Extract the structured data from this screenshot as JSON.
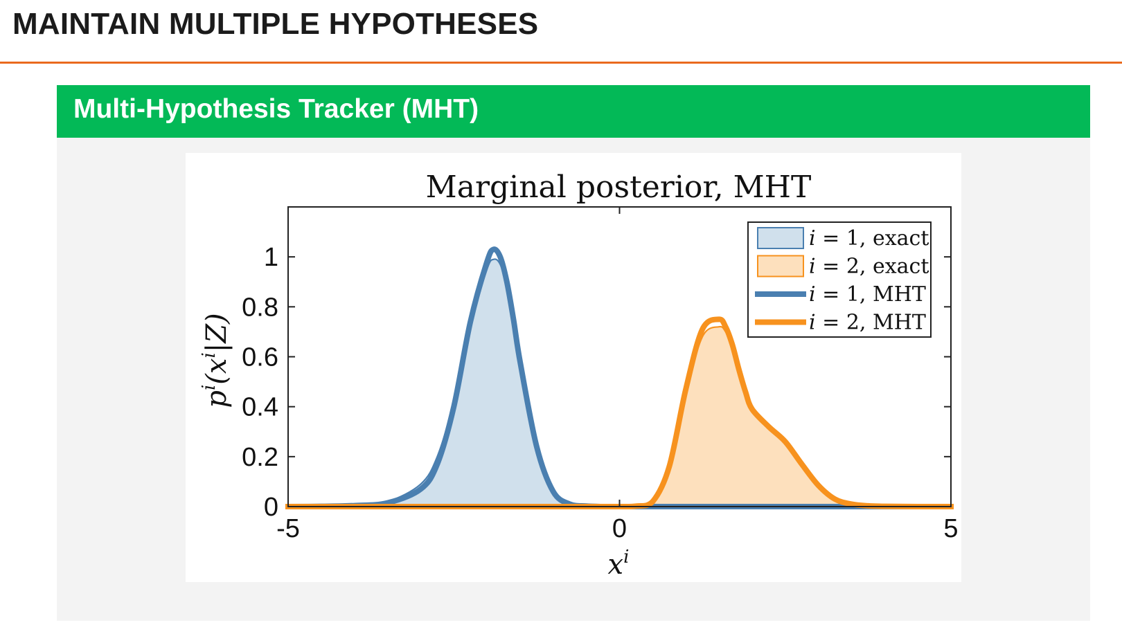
{
  "slide": {
    "title": "MAINTAIN MULTIPLE HYPOTHESES"
  },
  "block": {
    "title": "Multi-Hypothesis Tracker (MHT)"
  },
  "colors": {
    "accent_rule": "#ea6a1e",
    "block_header": "#03b957",
    "series_blue": "#4a7fb0",
    "series_orange": "#f7921e"
  },
  "chart_data": {
    "type": "area",
    "title": "Marginal posterior, MHT",
    "xlabel": "x^i",
    "ylabel": "p^i(x^i|Z)",
    "xlim": [
      -5,
      5
    ],
    "ylim": [
      0,
      1.2
    ],
    "x_ticks": [
      "-5",
      "0",
      "5"
    ],
    "y_ticks": [
      "0",
      "0.2",
      "0.4",
      "0.6",
      "0.8",
      "1"
    ],
    "legend_position": "top-right",
    "grid": false,
    "x": [
      -5.0,
      -4.5,
      -4.0,
      -3.5,
      -3.0,
      -2.75,
      -2.5,
      -2.25,
      -2.0,
      -1.9,
      -1.8,
      -1.7,
      -1.6,
      -1.5,
      -1.25,
      -1.0,
      -0.75,
      -0.5,
      -0.25,
      0.0,
      0.25,
      0.5,
      0.75,
      1.0,
      1.25,
      1.5,
      1.6,
      1.7,
      1.8,
      1.9,
      2.0,
      2.25,
      2.5,
      2.75,
      3.0,
      3.25,
      3.5,
      3.75,
      4.0,
      4.5,
      5.0
    ],
    "series": [
      {
        "name": "i = 1, exact",
        "style": "filled",
        "color": "#4a7fb0",
        "fill": "#d0e0ec",
        "values": [
          0.0,
          0.001,
          0.005,
          0.02,
          0.09,
          0.2,
          0.42,
          0.72,
          0.95,
          0.99,
          0.97,
          0.88,
          0.74,
          0.58,
          0.25,
          0.07,
          0.015,
          0.003,
          0.0,
          0.0,
          0.0,
          0.0,
          0.0,
          0.0,
          0.0,
          0.0,
          0.0,
          0.0,
          0.0,
          0.0,
          0.0,
          0.0,
          0.0,
          0.0,
          0.0,
          0.0,
          0.0,
          0.0,
          0.0,
          0.0,
          0.0
        ]
      },
      {
        "name": "i = 2, exact",
        "style": "filled",
        "color": "#f7921e",
        "fill": "#fde0bd",
        "values": [
          0.0,
          0.0,
          0.0,
          0.0,
          0.0,
          0.0,
          0.0,
          0.0,
          0.0,
          0.0,
          0.0,
          0.0,
          0.0,
          0.0,
          0.0,
          0.0,
          0.0,
          0.0,
          0.0,
          0.0,
          0.002,
          0.02,
          0.15,
          0.45,
          0.68,
          0.72,
          0.7,
          0.64,
          0.55,
          0.46,
          0.4,
          0.33,
          0.27,
          0.18,
          0.09,
          0.035,
          0.012,
          0.003,
          0.001,
          0.0,
          0.0
        ]
      },
      {
        "name": "i = 1, MHT",
        "style": "line",
        "color": "#4a7fb0",
        "values": [
          0.0,
          0.001,
          0.004,
          0.015,
          0.07,
          0.17,
          0.4,
          0.74,
          0.98,
          1.03,
          1.0,
          0.9,
          0.75,
          0.58,
          0.24,
          0.06,
          0.01,
          0.002,
          0.0,
          0.0,
          0.0,
          0.0,
          0.0,
          0.0,
          0.0,
          0.0,
          0.0,
          0.0,
          0.0,
          0.0,
          0.0,
          0.0,
          0.0,
          0.0,
          0.0,
          0.0,
          0.0,
          0.0,
          0.0,
          0.0,
          0.0
        ]
      },
      {
        "name": "i = 2, MHT",
        "style": "line",
        "color": "#f7921e",
        "values": [
          0.0,
          0.0,
          0.0,
          0.0,
          0.0,
          0.0,
          0.0,
          0.0,
          0.0,
          0.0,
          0.0,
          0.0,
          0.0,
          0.0,
          0.0,
          0.0,
          0.0,
          0.0,
          0.0,
          0.0,
          0.002,
          0.02,
          0.16,
          0.47,
          0.71,
          0.75,
          0.72,
          0.65,
          0.55,
          0.46,
          0.39,
          0.32,
          0.26,
          0.17,
          0.085,
          0.03,
          0.01,
          0.003,
          0.001,
          0.0,
          0.0
        ]
      }
    ]
  }
}
